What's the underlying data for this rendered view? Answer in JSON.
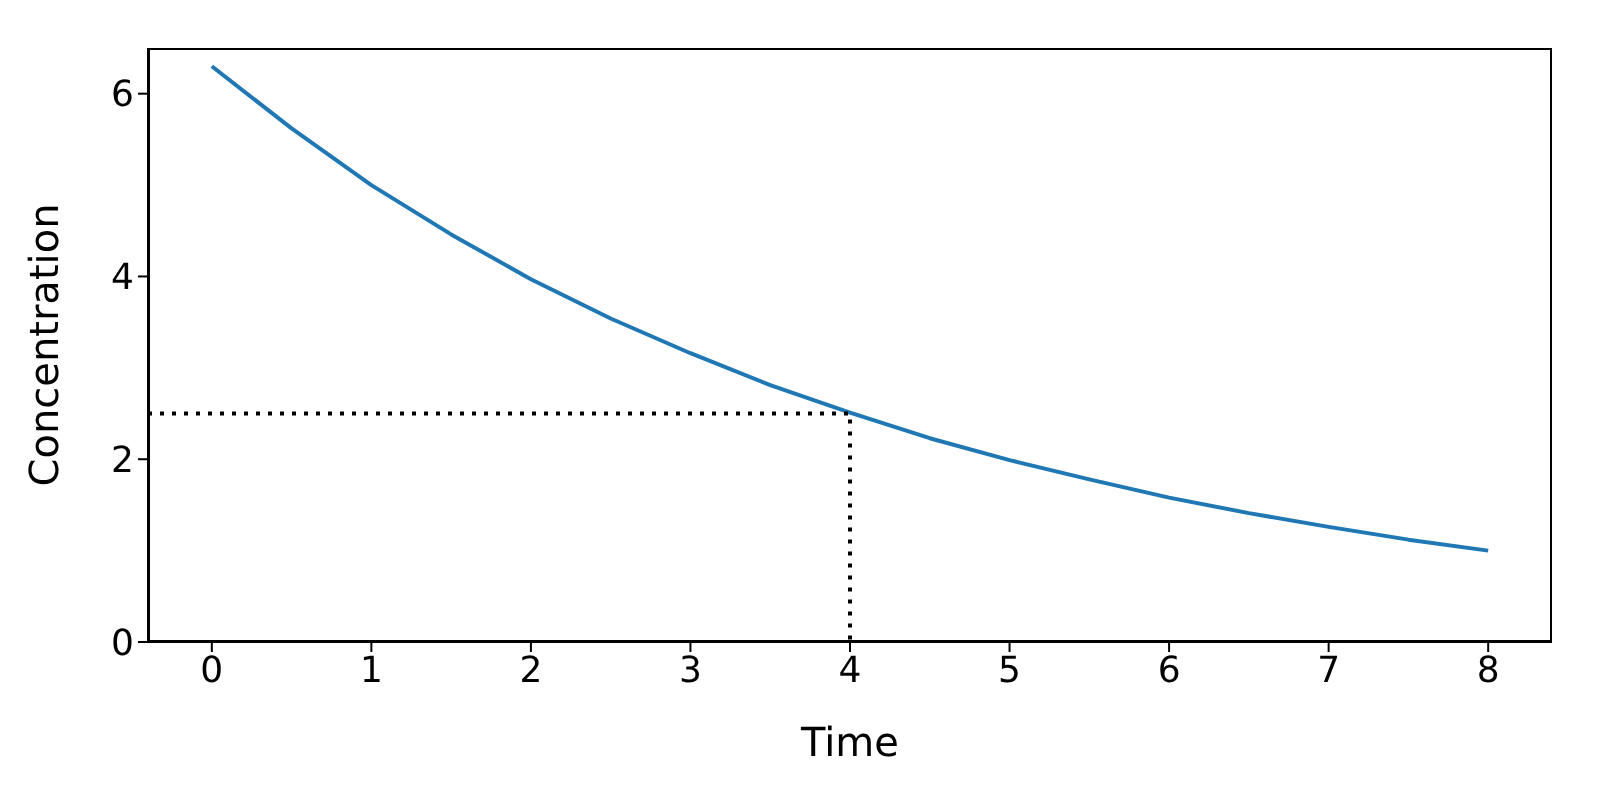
{
  "chart_data": {
    "type": "line",
    "xlabel": "Time",
    "ylabel": "Concentration",
    "xlim": [
      -0.4,
      8.4
    ],
    "ylim": [
      0,
      6.5
    ],
    "xticks": [
      0,
      1,
      2,
      3,
      4,
      5,
      6,
      7,
      8
    ],
    "yticks": [
      0,
      2,
      4,
      6
    ],
    "marker": "none",
    "series": [
      {
        "color": "#1f77b4",
        "line_style": "solid",
        "x": [
          0,
          0.5,
          1,
          1.5,
          2,
          2.5,
          3,
          3.5,
          4,
          4.5,
          5,
          5.5,
          6,
          6.5,
          7,
          7.5,
          8
        ],
        "values": [
          6.3,
          5.62,
          5.0,
          4.46,
          3.97,
          3.54,
          3.16,
          2.81,
          2.51,
          2.23,
          1.99,
          1.78,
          1.58,
          1.41,
          1.26,
          1.12,
          1.0
        ]
      },
      {
        "color": "#000000",
        "line_style": "dotted",
        "x": [
          -0.4,
          4,
          4
        ],
        "values": [
          2.5,
          2.5,
          0
        ]
      }
    ]
  }
}
